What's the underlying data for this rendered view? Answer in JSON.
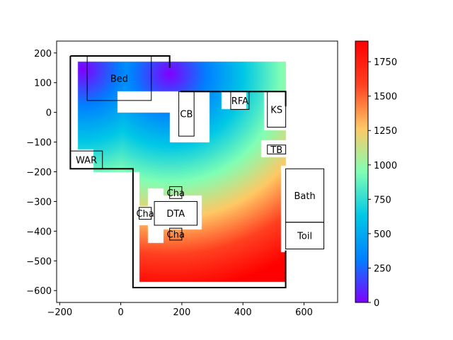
{
  "chart_data": {
    "type": "heatmap",
    "title": "",
    "xlabel": "",
    "ylabel": "",
    "xlim": [
      -210,
      710
    ],
    "ylim": [
      -640,
      240
    ],
    "x_ticks": [
      -200,
      0,
      200,
      400,
      600
    ],
    "y_ticks": [
      -600,
      -500,
      -400,
      -300,
      -200,
      -100,
      0,
      100,
      200
    ],
    "colormap": "rainbow",
    "colorbar": {
      "range": [
        0,
        1900
      ],
      "ticks": [
        0,
        250,
        500,
        750,
        1000,
        1250,
        1500,
        1750
      ],
      "stops": [
        "#8000ff",
        "#0080ff",
        "#00c8e6",
        "#80ffb4",
        "#ffc864",
        "#ff4020",
        "#ff0000"
      ]
    },
    "heat_field": {
      "sources": [
        {
          "x": -125,
          "y": 145,
          "value": 0
        },
        {
          "x": 160,
          "y": 130,
          "value": 0
        }
      ],
      "scale": 2.6,
      "floor_regions": [
        [
          -140,
          170,
          540,
          40
        ],
        [
          -140,
          40,
          380,
          -200
        ],
        [
          60,
          40,
          540,
          -570
        ]
      ],
      "holes": [
        [
          -10,
          70,
          160,
          0
        ],
        [
          160,
          70,
          290,
          -100
        ],
        [
          330,
          70,
          410,
          10
        ],
        [
          470,
          70,
          545,
          -60
        ],
        [
          460,
          -95,
          545,
          -150
        ],
        [
          -175,
          -125,
          -90,
          -215
        ],
        [
          90,
          -255,
          140,
          -335
        ],
        [
          45,
          -315,
          115,
          -380
        ],
        [
          90,
          -365,
          140,
          -440
        ],
        [
          105,
          -280,
          265,
          -395
        ],
        [
          525,
          -180,
          545,
          -470
        ]
      ]
    },
    "walls": [
      [
        [
          -165,
          190
        ],
        [
          160,
          190
        ],
        [
          160,
          150
        ]
      ],
      [
        [
          -165,
          190
        ],
        [
          -165,
          -190
        ],
        [
          40,
          -190
        ],
        [
          40,
          -590
        ],
        [
          540,
          -590
        ],
        [
          540,
          -465
        ]
      ],
      [
        [
          195,
          70
        ],
        [
          540,
          70
        ],
        [
          540,
          20
        ]
      ]
    ],
    "furniture": [
      {
        "label": "Bed",
        "x0": -110,
        "y0": 40,
        "x1": 100,
        "y1": 190
      },
      {
        "label": "CB",
        "x0": 190,
        "y0": -80,
        "x1": 240,
        "y1": 70
      },
      {
        "label": "RFA",
        "x0": 360,
        "y0": 10,
        "x1": 420,
        "y1": 70
      },
      {
        "label": "KS",
        "x0": 480,
        "y0": -50,
        "x1": 540,
        "y1": 70
      },
      {
        "label": "TB",
        "x0": 480,
        "y0": -140,
        "x1": 540,
        "y1": -110
      },
      {
        "label": "WAR",
        "x0": -165,
        "y0": -190,
        "x1": -60,
        "y1": -130
      },
      {
        "label": "Cha",
        "x0": 160,
        "y0": -290,
        "x1": 200,
        "y1": -250
      },
      {
        "label": "Cha",
        "x0": 60,
        "y0": -360,
        "x1": 100,
        "y1": -320
      },
      {
        "label": "Cha",
        "x0": 160,
        "y0": -430,
        "x1": 200,
        "y1": -390
      },
      {
        "label": "DTA",
        "x0": 110,
        "y0": -380,
        "x1": 250,
        "y1": -300
      },
      {
        "label": "Bath",
        "x0": 540,
        "y0": -370,
        "x1": 665,
        "y1": -190
      },
      {
        "label": "Toil",
        "x0": 540,
        "y0": -460,
        "x1": 665,
        "y1": -370
      }
    ],
    "legend": "none",
    "grid": false
  }
}
